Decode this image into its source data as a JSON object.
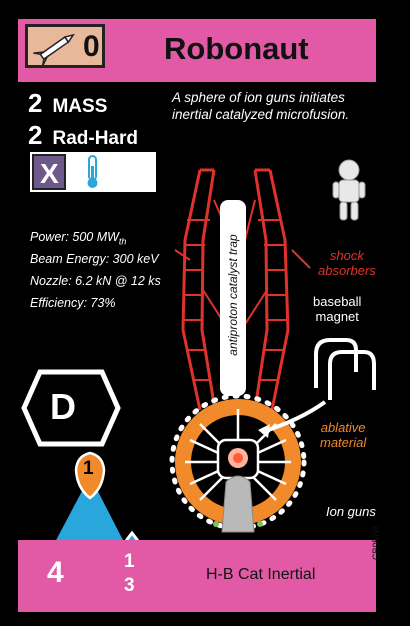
{
  "card": {
    "title": "Robonaut",
    "thrust_modifier": "0",
    "mass_value": "2",
    "mass_label": "MASS",
    "radhard_value": "2",
    "radhard_label": "Rad-Hard",
    "tag_x": "X",
    "description": "A sphere of ion guns initiates inertial catalyzed microfusion.",
    "specs": {
      "power": "Power: 500 MW",
      "power_sub": "th",
      "beam_energy": "Beam Energy: 300 keV",
      "nozzle": "Nozzle: 6.2 kN @ 12 ks",
      "efficiency": "Efficiency: 73%"
    },
    "labels": {
      "catalyst_trap": "antiproton catalyst trap",
      "shock_absorbers_1": "shock",
      "shock_absorbers_2": "absorbers",
      "baseball_1": "baseball",
      "baseball_2": "magnet",
      "ablative_1": "ablative",
      "ablative_2": "material",
      "ion_guns": "Ion guns"
    },
    "hex_letter": "D",
    "triangle_number": "1",
    "thrust_value": "4",
    "fuel_num": "1",
    "fuel_den": "3",
    "engine_type": "H-B Cat Inertial",
    "card_id": "CB057R"
  },
  "colors": {
    "pink": "#e25aa5",
    "red_frame": "#e0322a",
    "blue_triangle": "#29a6dc",
    "orange": "#f08a2a",
    "purple_x": "#6e5a8a"
  }
}
